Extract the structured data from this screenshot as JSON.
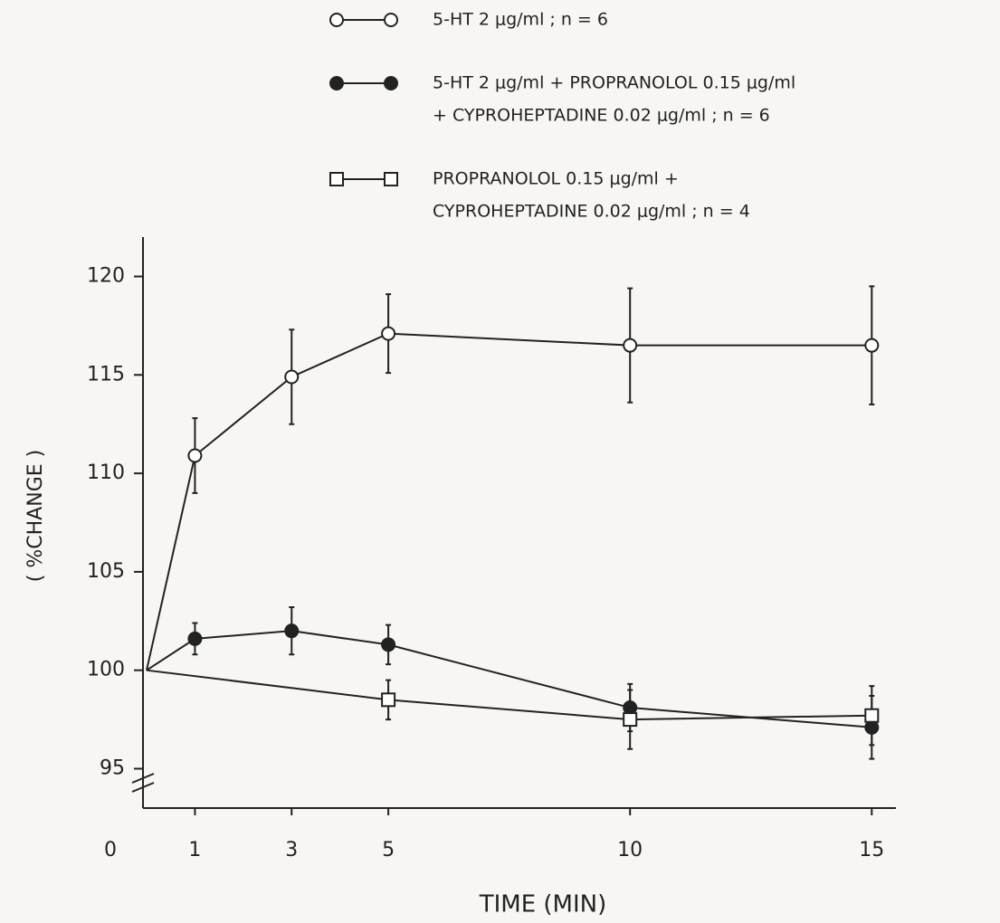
{
  "chart_data": {
    "type": "line",
    "x_label": "TIME  (MIN)",
    "y_label": "( %CHANGE )",
    "origin_label": "0",
    "xlim": [
      0,
      15.5
    ],
    "xticks": [
      1,
      3,
      5,
      10,
      15
    ],
    "ylim": [
      93,
      122
    ],
    "yticks": [
      95,
      100,
      105,
      110,
      115,
      120
    ],
    "axis_break": true,
    "series": [
      {
        "name": [
          "5-HT  2  μg/ml   ;   n = 6"
        ],
        "color": "#222222",
        "marker": "open-circle",
        "x": [
          0,
          1,
          3,
          5,
          10,
          15
        ],
        "values": [
          100,
          110.9,
          114.9,
          117.1,
          116.5,
          116.5
        ],
        "errors": [
          null,
          1.9,
          2.4,
          2.0,
          2.9,
          3.0
        ]
      },
      {
        "name": [
          "5-HT  2  μg/ml  +  PROPRANOLOL  0.15  μg/ml",
          "+  CYPROHEPTADINE  0.02  μg/ml   ;   n = 6"
        ],
        "color": "#222222",
        "marker": "filled-circle",
        "x": [
          0,
          1,
          3,
          5,
          10,
          15
        ],
        "values": [
          100,
          101.6,
          102.0,
          101.3,
          98.1,
          97.1
        ],
        "errors": [
          null,
          0.8,
          1.2,
          1.0,
          1.2,
          1.6
        ]
      },
      {
        "name": [
          "PROPRANOLOL     0.15  μg/ml   +",
          "CYPROHEPTADINE   0.02  μg/ml   ;   n = 4"
        ],
        "color": "#222222",
        "marker": "open-square",
        "x": [
          0,
          5,
          10,
          15
        ],
        "values": [
          100,
          98.5,
          97.5,
          97.7
        ],
        "errors": [
          null,
          1.0,
          1.5,
          1.5
        ]
      }
    ]
  }
}
